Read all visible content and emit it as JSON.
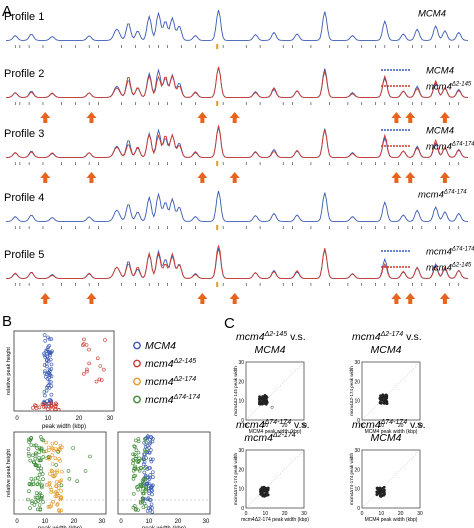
{
  "panels": {
    "a": {
      "letter": "A"
    },
    "b": {
      "letter": "B"
    },
    "c": {
      "letter": "C"
    }
  },
  "profiles": [
    {
      "label": "Profile 1",
      "legend": [
        {
          "name": "MCM4",
          "color": "#3b5bb5"
        }
      ],
      "arrows": []
    },
    {
      "label": "Profile 2",
      "legend": [
        {
          "name": "MCM4",
          "color": "#3b5bb5"
        },
        {
          "name": "mcm4",
          "sup": "Δ2-145",
          "color": "#cc3b2e"
        }
      ],
      "arrows": [
        0.085,
        0.185,
        0.425,
        0.495,
        0.845,
        0.875,
        0.95
      ]
    },
    {
      "label": "Profile 3",
      "legend": [
        {
          "name": "MCM4",
          "color": "#3b5bb5"
        },
        {
          "name": "mcm4",
          "sup": "Δ74-174",
          "color": "#cc3b2e"
        }
      ],
      "arrows": [
        0.085,
        0.185,
        0.425,
        0.495,
        0.845,
        0.875,
        0.95
      ]
    },
    {
      "label": "Profile 4",
      "legend": [
        {
          "name": "mcm4",
          "sup": "Δ74-174",
          "color": "#3b5bb5"
        }
      ],
      "arrows": []
    },
    {
      "label": "Profile 5",
      "legend": [
        {
          "name": "mcm4",
          "sup": "Δ74-174",
          "color": "#3b5bb5"
        },
        {
          "name": "mcm4",
          "sup": "Δ2-145",
          "color": "#cc3b2e"
        }
      ],
      "arrows": [
        0.085,
        0.185,
        0.425,
        0.495,
        0.845,
        0.875,
        0.95
      ]
    }
  ],
  "panel_b": {
    "xlabel": "peak width (kbp)",
    "ylabel": "relative peak height",
    "xticks": [
      "0",
      "10",
      "20",
      "30"
    ],
    "legend": [
      {
        "name": "MCM4",
        "sup": "",
        "color": "#3b5bb5"
      },
      {
        "name": "mcm4",
        "sup": "Δ2-145",
        "color": "#cc3b2e"
      },
      {
        "name": "mcm4",
        "sup": "Δ2-174",
        "color": "#e39a2a"
      },
      {
        "name": "mcm4",
        "sup": "Δ74-174",
        "color": "#3d8a35"
      }
    ]
  },
  "panel_c": {
    "xticks": [
      "0",
      "10",
      "20",
      "30"
    ],
    "plots": [
      {
        "title_a": "mcm4",
        "sup_a": "Δ2-145",
        "vs": " v.s.",
        "title_b": "MCM4",
        "sup_b": "",
        "xlabel": "MCM4 peak width (kbp)",
        "ylabel": "mcm4Δ2-145 peak width"
      },
      {
        "title_a": "mcm4",
        "sup_a": "Δ2-174",
        "vs": " v.s.",
        "title_b": "MCM4",
        "sup_b": "",
        "xlabel": "MCM4 peak width (kbp)",
        "ylabel": "mcm4Δ2-174 peak width"
      },
      {
        "title_a": "mcm4",
        "sup_a": "Δ74-174",
        "vs": " v.s.",
        "title_b": "mcm4",
        "sup_b": "Δ2-174",
        "xlabel": "mcm4Δ2-174 peak width (kbp)",
        "ylabel": "mcm4Δ74-174 peak width"
      },
      {
        "title_a": "mcm4",
        "sup_a": "Δ74-174",
        "vs": " v.s.",
        "title_b": "MCM4",
        "sup_b": "",
        "xlabel": "MCM4 peak width (kbp)",
        "ylabel": "mcm4Δ74-174 peak width"
      }
    ]
  }
}
